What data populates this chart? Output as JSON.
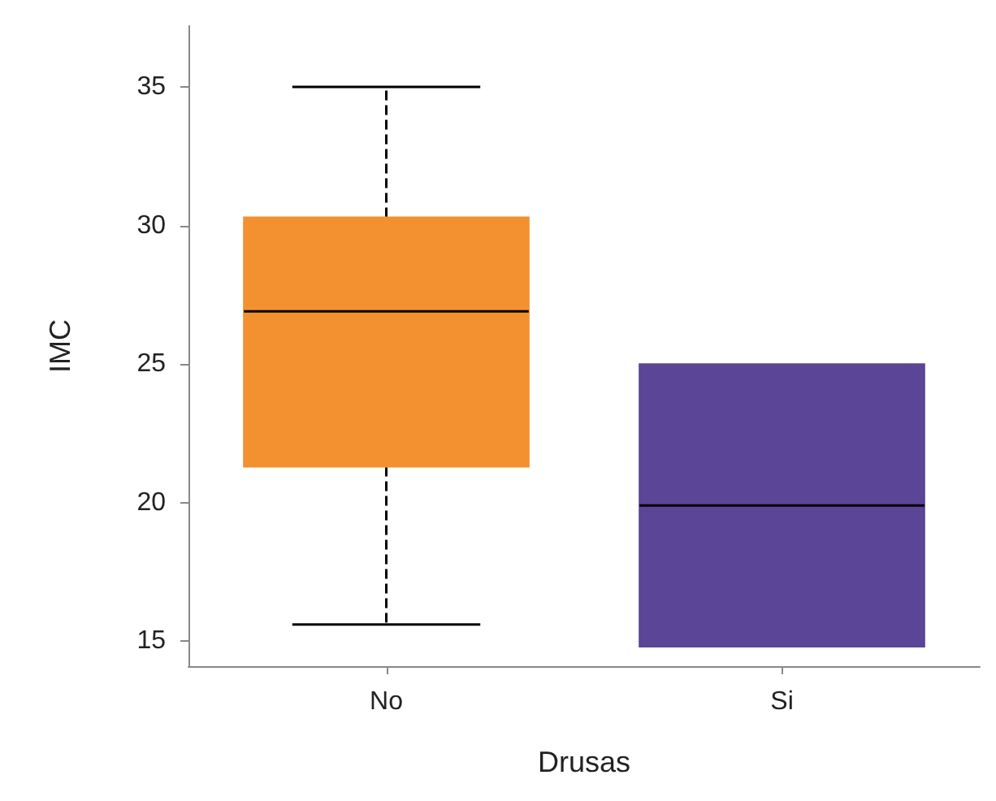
{
  "chart_data": {
    "type": "box",
    "xlabel": "Drusas",
    "ylabel": "IMC",
    "categories": [
      "No",
      "Si"
    ],
    "colors": [
      "#f39130",
      "#5b4596"
    ],
    "boxes": [
      {
        "low": 15.6,
        "q1": 21.3,
        "median": 26.9,
        "q3": 30.3,
        "high": 35
      },
      {
        "low": 14.8,
        "q1": 14.8,
        "median": 19.9,
        "q3": 25.0,
        "high": 25.0
      }
    ],
    "ylim": [
      14.1,
      37.2
    ],
    "yticks": [
      15,
      20,
      25,
      30,
      35
    ],
    "grid": false,
    "line_style": "dashed"
  }
}
